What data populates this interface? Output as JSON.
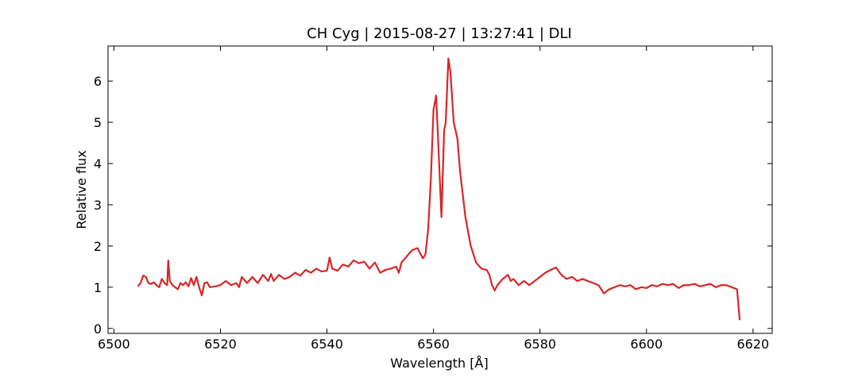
{
  "chart_data": {
    "type": "line",
    "title": "CH Cyg | 2015-08-27 | 13:27:41 | DLI",
    "x_label": "Wavelength [Å]",
    "y_label": "Relative flux",
    "xlim": [
      6498.9,
      6623.6
    ],
    "ylim": [
      -0.12,
      6.85
    ],
    "xticks": [
      6500,
      6520,
      6540,
      6560,
      6580,
      6600,
      6620
    ],
    "yticks": [
      0,
      1,
      2,
      3,
      4,
      5,
      6
    ],
    "x": [
      6504.5,
      6505,
      6505.5,
      6506,
      6506.5,
      6507,
      6507.5,
      6508,
      6508.5,
      6509,
      6509.5,
      6510,
      6510.2,
      6510.5,
      6511,
      6511.5,
      6512,
      6512.5,
      6513,
      6513.5,
      6514,
      6514.5,
      6515,
      6515.5,
      6516,
      6516.5,
      6517,
      6517.5,
      6518,
      6519,
      6520,
      6521,
      6522,
      6523,
      6523.5,
      6524,
      6525,
      6526,
      6527,
      6528,
      6529,
      6529.5,
      6530,
      6531,
      6532,
      6533,
      6534,
      6535,
      6536,
      6537,
      6538,
      6539,
      6540,
      6540.5,
      6541,
      6542,
      6543,
      6544,
      6545,
      6546,
      6547,
      6548,
      6549,
      6550,
      6551,
      6552,
      6553,
      6553.5,
      6554,
      6555,
      6556,
      6557,
      6558,
      6558.5,
      6559,
      6559.5,
      6560,
      6560.5,
      6561,
      6561.5,
      6562,
      6562.3,
      6562.8,
      6563.2,
      6563.8,
      6564.5,
      6565,
      6566,
      6567,
      6568,
      6569,
      6570,
      6570.5,
      6571,
      6571.5,
      6572,
      6573,
      6574,
      6574.5,
      6575,
      6576,
      6577,
      6578,
      6579,
      6580,
      6581,
      6582,
      6583,
      6584,
      6585,
      6586,
      6587,
      6588,
      6589,
      6590,
      6591,
      6592,
      6593,
      6594,
      6595,
      6596,
      6597,
      6598,
      6599,
      6600,
      6601,
      6602,
      6603,
      6604,
      6605,
      6606,
      6607,
      6608,
      6609,
      6610,
      6611,
      6612,
      6613,
      6614,
      6615,
      6616,
      6617,
      6617.5
    ],
    "series": [
      {
        "color": "#d62728",
        "values": [
          1.02,
          1.1,
          1.28,
          1.25,
          1.1,
          1.08,
          1.12,
          1.05,
          1.0,
          1.2,
          1.1,
          1.05,
          1.65,
          1.15,
          1.05,
          1.0,
          0.95,
          1.1,
          1.05,
          1.12,
          1.02,
          1.22,
          1.05,
          1.25,
          1.0,
          0.8,
          1.1,
          1.12,
          1.0,
          1.02,
          1.05,
          1.15,
          1.05,
          1.1,
          1.0,
          1.25,
          1.1,
          1.25,
          1.1,
          1.3,
          1.15,
          1.32,
          1.15,
          1.3,
          1.2,
          1.25,
          1.35,
          1.28,
          1.42,
          1.35,
          1.45,
          1.38,
          1.4,
          1.72,
          1.45,
          1.4,
          1.55,
          1.5,
          1.65,
          1.58,
          1.62,
          1.45,
          1.6,
          1.35,
          1.42,
          1.45,
          1.5,
          1.35,
          1.6,
          1.75,
          1.9,
          1.95,
          1.7,
          1.8,
          2.4,
          3.6,
          5.3,
          5.65,
          4.2,
          2.7,
          4.8,
          5.0,
          6.55,
          6.2,
          5.0,
          4.6,
          3.8,
          2.7,
          2.0,
          1.6,
          1.45,
          1.42,
          1.3,
          1.05,
          0.92,
          1.05,
          1.2,
          1.3,
          1.15,
          1.2,
          1.05,
          1.15,
          1.05,
          1.15,
          1.25,
          1.35,
          1.42,
          1.48,
          1.3,
          1.2,
          1.25,
          1.15,
          1.2,
          1.15,
          1.1,
          1.05,
          0.85,
          0.95,
          1.0,
          1.05,
          1.02,
          1.05,
          0.95,
          1.0,
          0.98,
          1.05,
          1.02,
          1.08,
          1.05,
          1.08,
          0.98,
          1.05,
          1.05,
          1.08,
          1.02,
          1.05,
          1.08,
          1.0,
          1.05,
          1.05,
          1.0,
          0.95,
          0.2
        ]
      }
    ]
  }
}
